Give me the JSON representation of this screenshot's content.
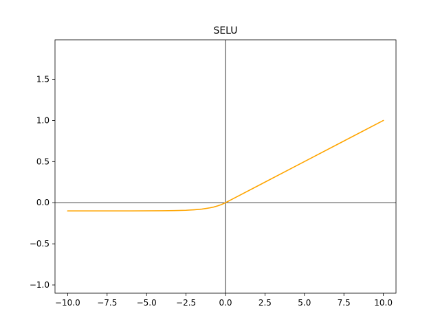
{
  "chart_data": {
    "type": "line",
    "title": "SELU",
    "xlabel": "",
    "ylabel": "",
    "xlim": [
      -10.8,
      10.8
    ],
    "ylim": [
      -1.1,
      1.98
    ],
    "x_ticks": [
      -10.0,
      -7.5,
      -5.0,
      -2.5,
      0.0,
      2.5,
      5.0,
      7.5,
      10.0
    ],
    "x_tick_labels": [
      "−10.0",
      "−7.5",
      "−5.0",
      "−2.5",
      "0.0",
      "2.5",
      "5.0",
      "7.5",
      "10.0"
    ],
    "y_ticks": [
      -1.0,
      -0.5,
      0.0,
      0.5,
      1.0,
      1.5
    ],
    "y_tick_labels": [
      "−1.0",
      "−0.5",
      "0.0",
      "0.5",
      "1.0",
      "1.5"
    ],
    "grid": false,
    "reference_lines": {
      "x_zero": true,
      "y_zero": true,
      "color": "#000000"
    },
    "series": [
      {
        "color": "#ffa500",
        "x": [
          -10,
          -9,
          -8,
          -7,
          -6,
          -5,
          -4,
          -3,
          -2.5,
          -2,
          -1.5,
          -1.25,
          -1,
          -0.75,
          -0.5,
          -0.25,
          0,
          2.5,
          5,
          7.5,
          10
        ],
        "y": [
          -0.1,
          -0.1,
          -0.1,
          -0.1,
          -0.1,
          -0.099,
          -0.098,
          -0.095,
          -0.092,
          -0.086,
          -0.078,
          -0.071,
          -0.063,
          -0.053,
          -0.039,
          -0.022,
          0,
          0.25,
          0.5,
          0.75,
          1.0
        ]
      }
    ]
  }
}
